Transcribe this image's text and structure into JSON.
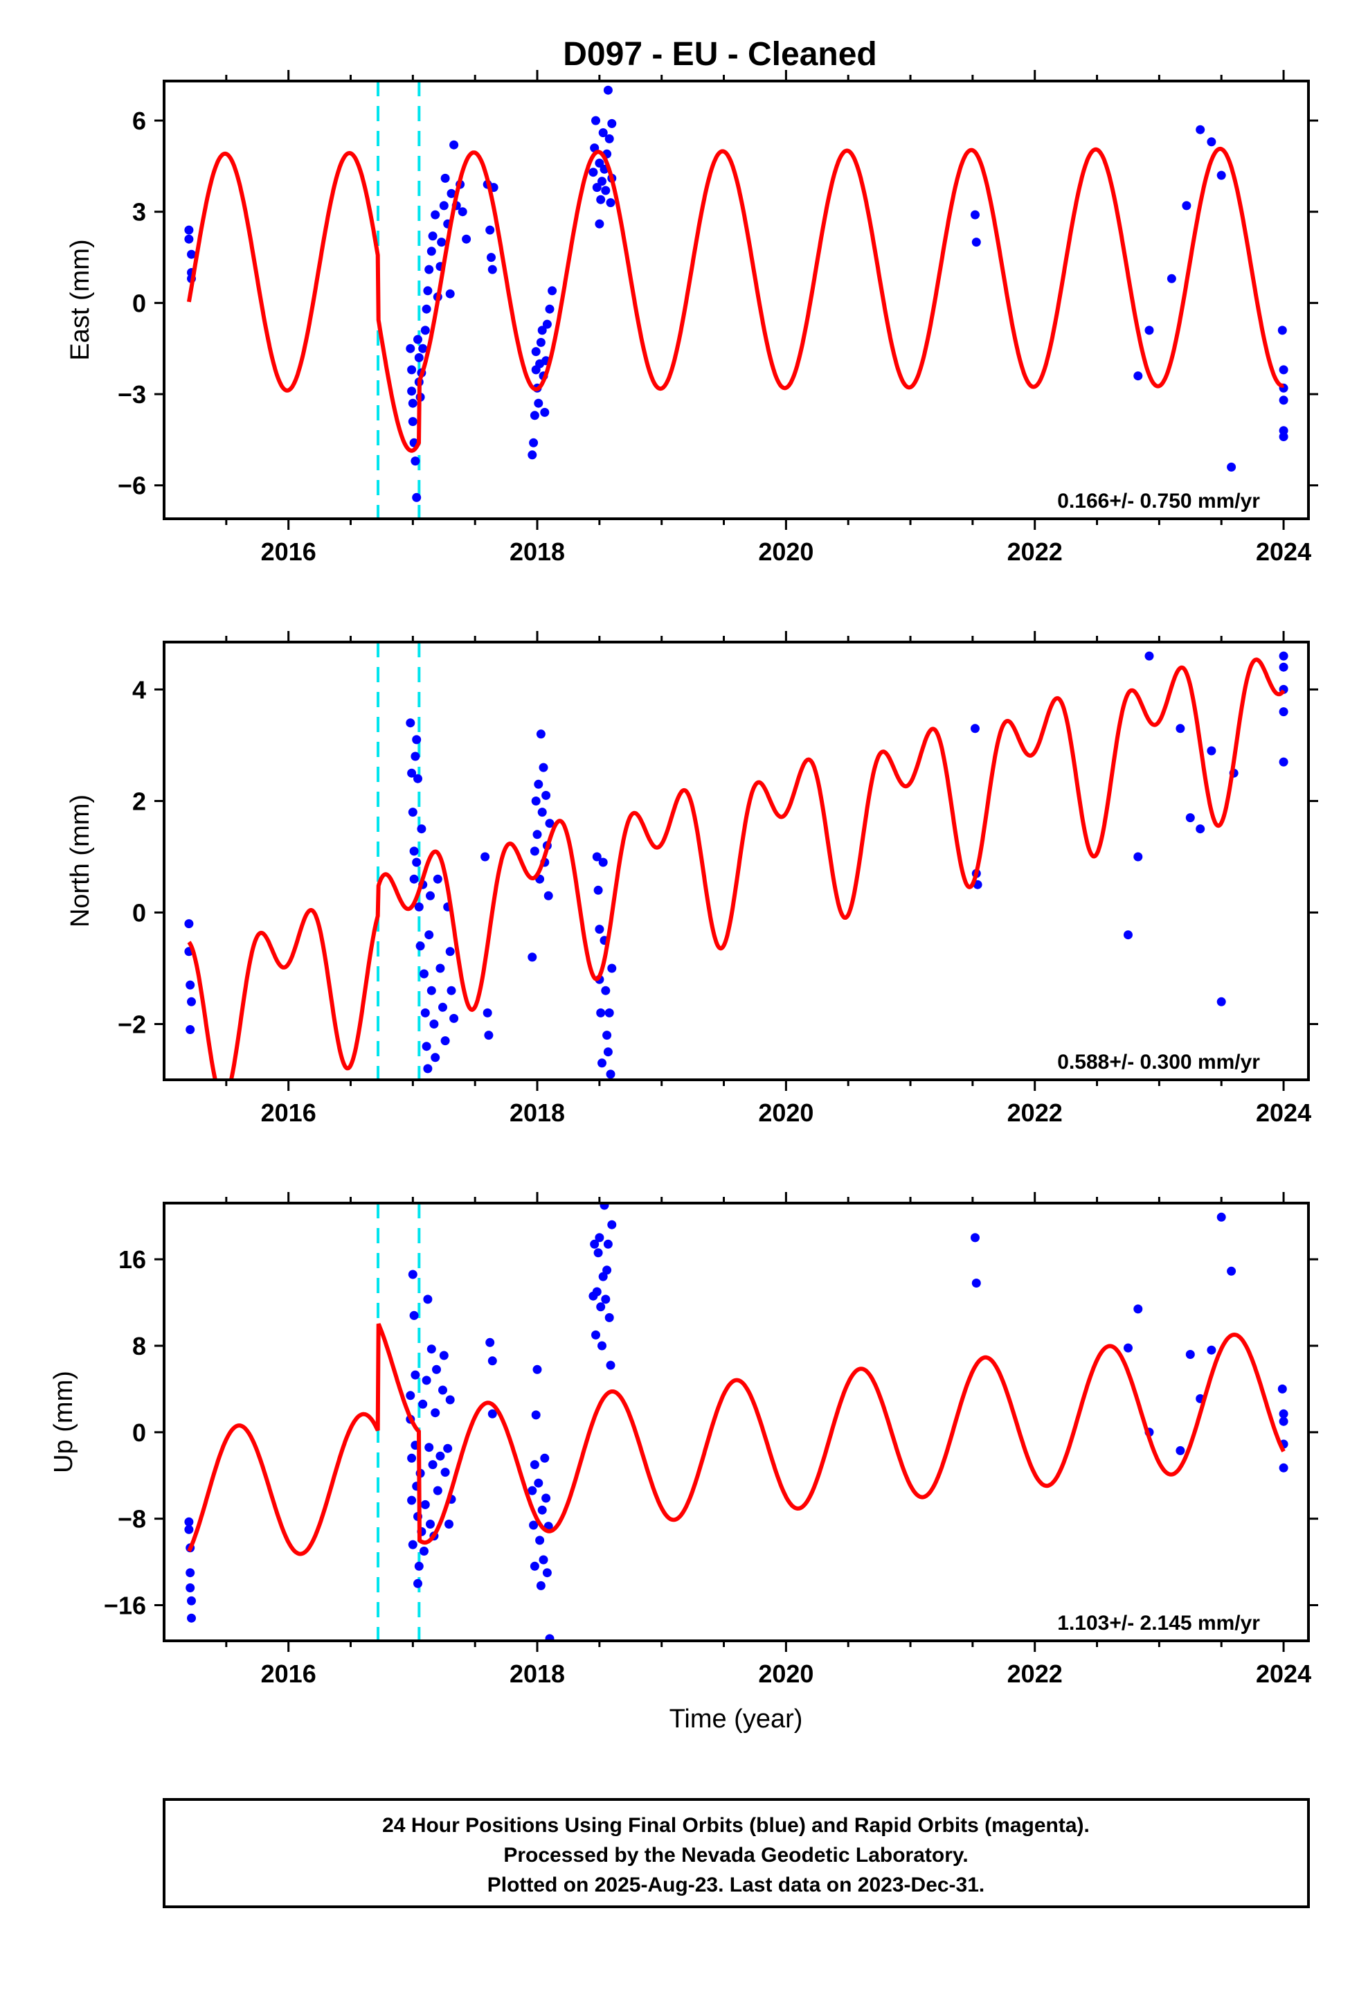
{
  "chart_data": {
    "type": "scatter",
    "title": "D097  - EU - Cleaned",
    "xlabel": "Time (year)",
    "xlim": [
      2015.0,
      2024.2
    ],
    "xticks": [
      "2016",
      "2018",
      "2020",
      "2022",
      "2024"
    ],
    "xtick_values": [
      2016,
      2018,
      2020,
      2022,
      2024
    ],
    "series_colors": {
      "points": "#0000ff",
      "model": "#ff0000",
      "offsets": "#00e5ee"
    },
    "offset_epochs": [
      2016.72,
      2017.05
    ],
    "legend_lines": [
      "24 Hour Positions Using Final Orbits (blue) and Rapid Orbits (magenta).",
      "Processed by the Nevada Geodetic Laboratory.",
      "Plotted on 2025-Aug-23. Last data on 2023-Dec-31."
    ],
    "panels": [
      {
        "name": "east",
        "ylabel": "East (mm)",
        "ylim": [
          -7.1,
          7.3
        ],
        "yticks": [
          6,
          3,
          0,
          -3,
          -6
        ],
        "ytick_labels": [
          "6",
          "3",
          "0",
          "−3",
          "−6"
        ],
        "rate_label": "0.166+/- 0.750 mm/yr",
        "points": [
          [
            2015.2,
            2.4
          ],
          [
            2015.2,
            2.1
          ],
          [
            2015.22,
            1.6
          ],
          [
            2015.22,
            1.0
          ],
          [
            2015.22,
            0.8
          ],
          [
            2016.98,
            -1.5
          ],
          [
            2016.99,
            -2.2
          ],
          [
            2016.99,
            -2.9
          ],
          [
            2017.0,
            -3.3
          ],
          [
            2017.0,
            -3.9
          ],
          [
            2017.01,
            -4.6
          ],
          [
            2017.02,
            -5.2
          ],
          [
            2017.03,
            -6.4
          ],
          [
            2017.04,
            -1.2
          ],
          [
            2017.05,
            -1.8
          ],
          [
            2017.05,
            -2.6
          ],
          [
            2017.06,
            -3.1
          ],
          [
            2017.07,
            -2.3
          ],
          [
            2017.08,
            -1.5
          ],
          [
            2017.1,
            -0.9
          ],
          [
            2017.11,
            -0.2
          ],
          [
            2017.12,
            0.4
          ],
          [
            2017.13,
            1.1
          ],
          [
            2017.15,
            1.7
          ],
          [
            2017.16,
            2.2
          ],
          [
            2017.18,
            2.9
          ],
          [
            2017.2,
            0.2
          ],
          [
            2017.22,
            1.2
          ],
          [
            2017.23,
            2.0
          ],
          [
            2017.25,
            3.2
          ],
          [
            2017.26,
            4.1
          ],
          [
            2017.28,
            2.6
          ],
          [
            2017.3,
            0.3
          ],
          [
            2017.31,
            3.6
          ],
          [
            2017.33,
            5.2
          ],
          [
            2017.35,
            3.2
          ],
          [
            2017.38,
            3.9
          ],
          [
            2017.4,
            3.0
          ],
          [
            2017.43,
            2.1
          ],
          [
            2017.6,
            3.9
          ],
          [
            2017.62,
            2.4
          ],
          [
            2017.63,
            1.5
          ],
          [
            2017.64,
            1.1
          ],
          [
            2017.65,
            3.8
          ],
          [
            2017.96,
            -5.0
          ],
          [
            2017.97,
            -4.6
          ],
          [
            2017.98,
            -3.7
          ],
          [
            2017.99,
            -2.2
          ],
          [
            2017.99,
            -1.6
          ],
          [
            2018.0,
            -2.8
          ],
          [
            2018.01,
            -3.3
          ],
          [
            2018.02,
            -2.0
          ],
          [
            2018.03,
            -1.3
          ],
          [
            2018.04,
            -0.9
          ],
          [
            2018.05,
            -2.4
          ],
          [
            2018.06,
            -3.6
          ],
          [
            2018.07,
            -1.9
          ],
          [
            2018.08,
            -0.7
          ],
          [
            2018.1,
            -0.2
          ],
          [
            2018.12,
            0.4
          ],
          [
            2018.45,
            4.3
          ],
          [
            2018.46,
            5.1
          ],
          [
            2018.47,
            6.0
          ],
          [
            2018.48,
            3.8
          ],
          [
            2018.5,
            4.6
          ],
          [
            2018.5,
            2.6
          ],
          [
            2018.51,
            3.4
          ],
          [
            2018.52,
            4.0
          ],
          [
            2018.53,
            5.6
          ],
          [
            2018.54,
            4.4
          ],
          [
            2018.55,
            3.7
          ],
          [
            2018.56,
            4.9
          ],
          [
            2018.57,
            7.0
          ],
          [
            2018.58,
            5.4
          ],
          [
            2018.59,
            3.3
          ],
          [
            2018.6,
            4.1
          ],
          [
            2018.6,
            5.9
          ],
          [
            2021.52,
            2.9
          ],
          [
            2021.53,
            2.0
          ],
          [
            2022.83,
            -2.4
          ],
          [
            2022.92,
            -0.9
          ],
          [
            2023.1,
            0.8
          ],
          [
            2023.22,
            3.2
          ],
          [
            2023.33,
            5.7
          ],
          [
            2023.42,
            5.3
          ],
          [
            2023.5,
            4.2
          ],
          [
            2023.58,
            -5.4
          ],
          [
            2023.99,
            -0.9
          ],
          [
            2024.0,
            -2.2
          ],
          [
            2024.0,
            -2.8
          ],
          [
            2024.0,
            -3.2
          ],
          [
            2024.0,
            -4.2
          ],
          [
            2024.0,
            -4.4
          ]
        ]
      },
      {
        "name": "north",
        "ylabel": "North (mm)",
        "ylim": [
          -3.0,
          4.85
        ],
        "yticks": [
          4,
          2,
          0,
          -2
        ],
        "ytick_labels": [
          "4",
          "2",
          "0",
          "−2"
        ],
        "rate_label": "0.588+/- 0.300 mm/yr",
        "points": [
          [
            2015.2,
            -0.2
          ],
          [
            2015.2,
            -0.7
          ],
          [
            2015.21,
            -1.3
          ],
          [
            2015.22,
            -1.6
          ],
          [
            2015.21,
            -2.1
          ],
          [
            2016.98,
            3.4
          ],
          [
            2016.99,
            2.5
          ],
          [
            2017.0,
            1.8
          ],
          [
            2017.01,
            1.1
          ],
          [
            2017.01,
            0.6
          ],
          [
            2017.02,
            2.8
          ],
          [
            2017.03,
            3.1
          ],
          [
            2017.03,
            0.9
          ],
          [
            2017.04,
            2.4
          ],
          [
            2017.05,
            0.1
          ],
          [
            2017.06,
            -0.6
          ],
          [
            2017.07,
            1.5
          ],
          [
            2017.08,
            0.5
          ],
          [
            2017.09,
            -1.1
          ],
          [
            2017.1,
            -1.8
          ],
          [
            2017.11,
            -2.4
          ],
          [
            2017.12,
            -2.8
          ],
          [
            2017.13,
            -0.4
          ],
          [
            2017.14,
            0.3
          ],
          [
            2017.15,
            -1.4
          ],
          [
            2017.17,
            -2.0
          ],
          [
            2017.18,
            -2.6
          ],
          [
            2017.2,
            0.6
          ],
          [
            2017.22,
            -1.0
          ],
          [
            2017.24,
            -1.7
          ],
          [
            2017.26,
            -2.3
          ],
          [
            2017.28,
            0.1
          ],
          [
            2017.3,
            -0.7
          ],
          [
            2017.31,
            -1.4
          ],
          [
            2017.33,
            -1.9
          ],
          [
            2017.58,
            1.0
          ],
          [
            2017.6,
            -1.8
          ],
          [
            2017.61,
            -2.2
          ],
          [
            2017.96,
            -0.8
          ],
          [
            2017.98,
            1.1
          ],
          [
            2017.99,
            2.0
          ],
          [
            2018.0,
            1.4
          ],
          [
            2018.01,
            2.3
          ],
          [
            2018.02,
            0.6
          ],
          [
            2018.03,
            3.2
          ],
          [
            2018.04,
            1.8
          ],
          [
            2018.05,
            2.6
          ],
          [
            2018.06,
            0.9
          ],
          [
            2018.07,
            2.1
          ],
          [
            2018.08,
            1.2
          ],
          [
            2018.09,
            0.3
          ],
          [
            2018.1,
            1.6
          ],
          [
            2018.48,
            1.0
          ],
          [
            2018.49,
            0.4
          ],
          [
            2018.5,
            -0.3
          ],
          [
            2018.5,
            -1.2
          ],
          [
            2018.51,
            -1.8
          ],
          [
            2018.52,
            -2.7
          ],
          [
            2018.53,
            0.9
          ],
          [
            2018.54,
            -0.5
          ],
          [
            2018.55,
            -1.4
          ],
          [
            2018.56,
            -2.2
          ],
          [
            2018.57,
            -2.5
          ],
          [
            2018.58,
            -1.8
          ],
          [
            2018.59,
            -2.9
          ],
          [
            2018.6,
            -1.0
          ],
          [
            2021.52,
            3.3
          ],
          [
            2021.53,
            0.7
          ],
          [
            2021.54,
            0.5
          ],
          [
            2022.75,
            -0.4
          ],
          [
            2022.83,
            1.0
          ],
          [
            2022.92,
            4.6
          ],
          [
            2023.17,
            3.3
          ],
          [
            2023.25,
            1.7
          ],
          [
            2023.33,
            1.5
          ],
          [
            2023.42,
            2.9
          ],
          [
            2023.5,
            -1.6
          ],
          [
            2023.6,
            2.5
          ],
          [
            2024.0,
            4.6
          ],
          [
            2024.0,
            4.4
          ],
          [
            2024.0,
            4.0
          ],
          [
            2024.0,
            3.6
          ],
          [
            2024.0,
            2.7
          ]
        ]
      },
      {
        "name": "up",
        "ylabel": "Up (mm)",
        "ylim": [
          -19.3,
          21.2
        ],
        "yticks": [
          16,
          8,
          0,
          -8,
          -16
        ],
        "ytick_labels": [
          "16",
          "8",
          "0",
          "−8",
          "−16"
        ],
        "rate_label": "1.103+/- 2.145 mm/yr",
        "points": [
          [
            2015.2,
            -8.3
          ],
          [
            2015.2,
            -9.0
          ],
          [
            2015.21,
            -10.7
          ],
          [
            2015.21,
            -13.0
          ],
          [
            2015.21,
            -14.4
          ],
          [
            2015.22,
            -15.6
          ],
          [
            2015.22,
            -17.2
          ],
          [
            2016.98,
            3.4
          ],
          [
            2016.98,
            1.2
          ],
          [
            2016.99,
            -2.4
          ],
          [
            2016.99,
            -6.3
          ],
          [
            2017.0,
            -10.4
          ],
          [
            2017.0,
            14.6
          ],
          [
            2017.01,
            10.8
          ],
          [
            2017.02,
            5.3
          ],
          [
            2017.02,
            -1.2
          ],
          [
            2017.03,
            -5.0
          ],
          [
            2017.04,
            -7.8
          ],
          [
            2017.04,
            -14.0
          ],
          [
            2017.05,
            -12.4
          ],
          [
            2017.06,
            -3.8
          ],
          [
            2017.07,
            -9.2
          ],
          [
            2017.08,
            2.6
          ],
          [
            2017.09,
            -11.0
          ],
          [
            2017.1,
            -6.7
          ],
          [
            2017.11,
            4.8
          ],
          [
            2017.12,
            12.3
          ],
          [
            2017.13,
            -1.4
          ],
          [
            2017.14,
            -8.5
          ],
          [
            2017.15,
            7.7
          ],
          [
            2017.16,
            -3.0
          ],
          [
            2017.17,
            -9.6
          ],
          [
            2017.18,
            1.8
          ],
          [
            2017.19,
            5.8
          ],
          [
            2017.2,
            -5.4
          ],
          [
            2017.22,
            -2.2
          ],
          [
            2017.24,
            3.9
          ],
          [
            2017.25,
            7.1
          ],
          [
            2017.26,
            -3.7
          ],
          [
            2017.28,
            -1.5
          ],
          [
            2017.29,
            -8.5
          ],
          [
            2017.3,
            3.0
          ],
          [
            2017.31,
            -6.2
          ],
          [
            2017.62,
            8.3
          ],
          [
            2017.64,
            6.6
          ],
          [
            2017.64,
            1.7
          ],
          [
            2017.96,
            -5.4
          ],
          [
            2017.97,
            -8.6
          ],
          [
            2017.98,
            -12.4
          ],
          [
            2017.98,
            -3.0
          ],
          [
            2017.99,
            1.6
          ],
          [
            2018.0,
            5.8
          ],
          [
            2018.01,
            -4.7
          ],
          [
            2018.02,
            -10.0
          ],
          [
            2018.03,
            -14.2
          ],
          [
            2018.04,
            -7.2
          ],
          [
            2018.05,
            -11.8
          ],
          [
            2018.06,
            -2.4
          ],
          [
            2018.07,
            -6.1
          ],
          [
            2018.08,
            -13.0
          ],
          [
            2018.09,
            -8.7
          ],
          [
            2018.1,
            -19.1
          ],
          [
            2018.45,
            12.6
          ],
          [
            2018.46,
            17.4
          ],
          [
            2018.47,
            9.0
          ],
          [
            2018.48,
            13.0
          ],
          [
            2018.49,
            16.6
          ],
          [
            2018.5,
            18.0
          ],
          [
            2018.51,
            11.6
          ],
          [
            2018.52,
            8.0
          ],
          [
            2018.53,
            14.4
          ],
          [
            2018.54,
            21.0
          ],
          [
            2018.55,
            12.3
          ],
          [
            2018.56,
            15.0
          ],
          [
            2018.57,
            17.4
          ],
          [
            2018.58,
            10.6
          ],
          [
            2018.59,
            6.2
          ],
          [
            2018.6,
            19.2
          ],
          [
            2021.52,
            18.0
          ],
          [
            2021.53,
            13.8
          ],
          [
            2022.75,
            7.8
          ],
          [
            2022.83,
            11.4
          ],
          [
            2022.92,
            0.0
          ],
          [
            2023.17,
            -1.7
          ],
          [
            2023.25,
            7.2
          ],
          [
            2023.33,
            3.1
          ],
          [
            2023.42,
            7.6
          ],
          [
            2023.5,
            19.9
          ],
          [
            2023.58,
            14.9
          ],
          [
            2023.99,
            4.0
          ],
          [
            2024.0,
            1.7
          ],
          [
            2024.0,
            1.0
          ],
          [
            2024.0,
            -1.1
          ],
          [
            2024.0,
            -3.3
          ]
        ]
      }
    ]
  }
}
